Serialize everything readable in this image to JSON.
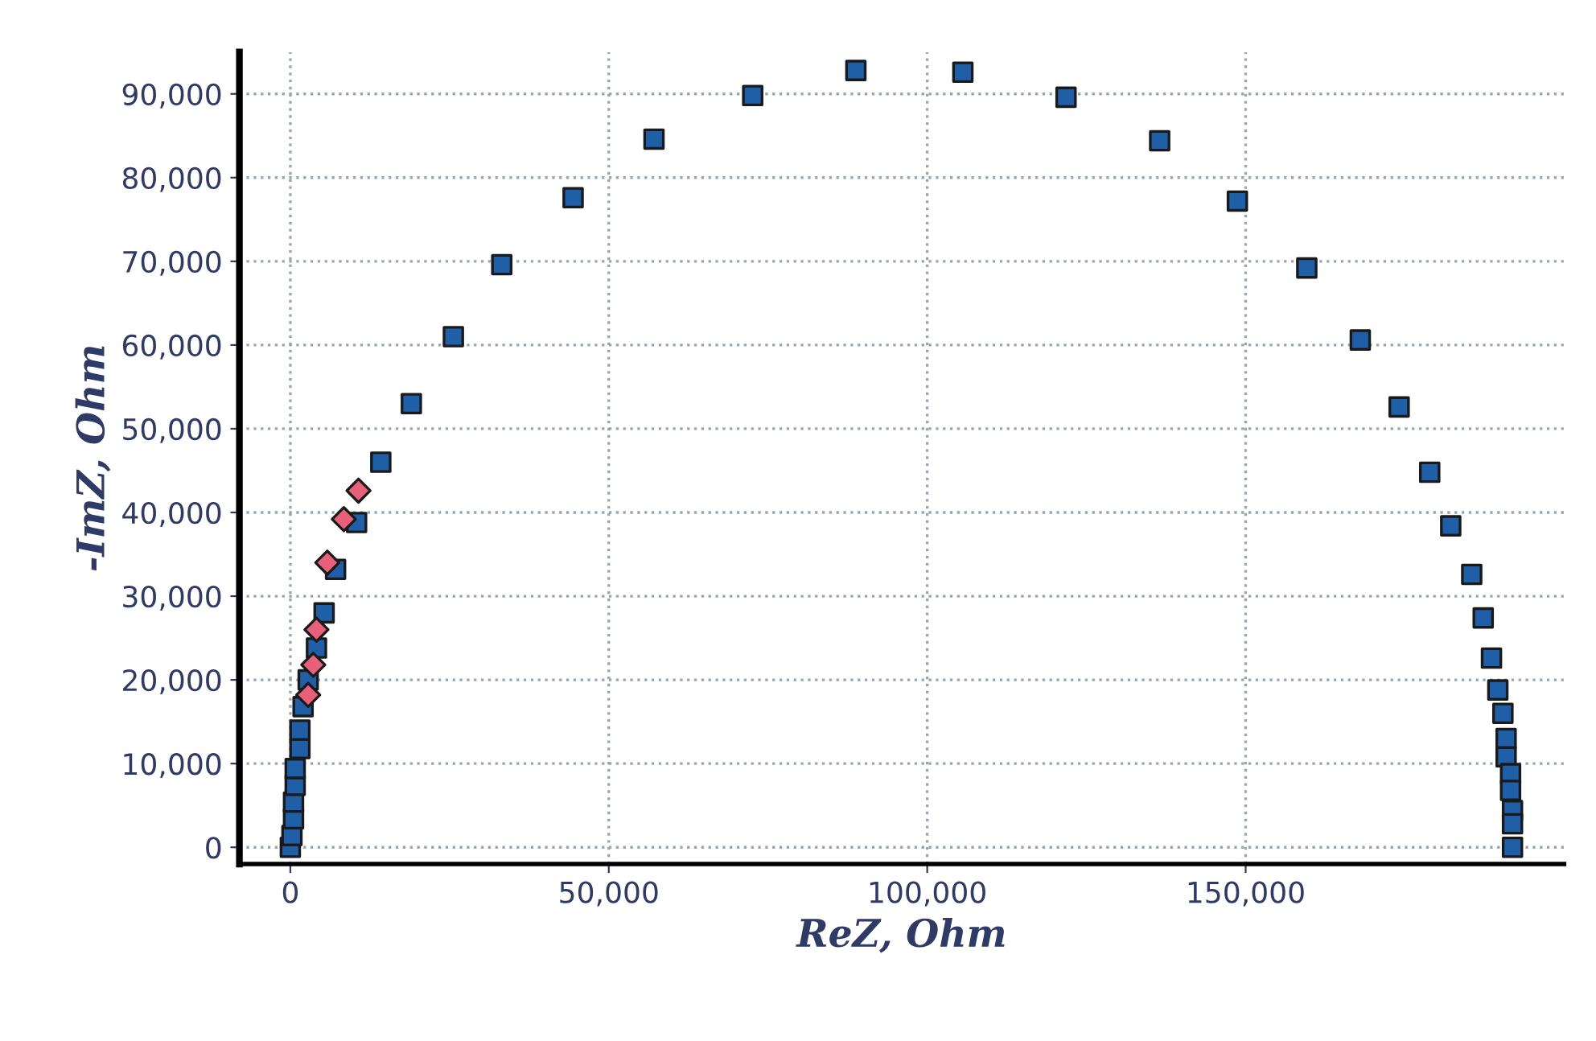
{
  "chart_data": {
    "type": "scatter",
    "xlabel": "ReZ, Ohm",
    "ylabel": "-ImZ, Ohm",
    "xlim": [
      -8000,
      200000
    ],
    "ylim": [
      -2000,
      95000
    ],
    "xticks": [
      {
        "value": 0,
        "label": "0"
      },
      {
        "value": 50000,
        "label": "50,000"
      },
      {
        "value": 100000,
        "label": "100,000"
      },
      {
        "value": 150000,
        "label": "150,000"
      }
    ],
    "yticks": [
      {
        "value": 0,
        "label": "0"
      },
      {
        "value": 10000,
        "label": "10,000"
      },
      {
        "value": 20000,
        "label": "20,000"
      },
      {
        "value": 30000,
        "label": "30,000"
      },
      {
        "value": 40000,
        "label": "40,000"
      },
      {
        "value": 50000,
        "label": "50,000"
      },
      {
        "value": 60000,
        "label": "60,000"
      },
      {
        "value": 70000,
        "label": "70,000"
      },
      {
        "value": 80000,
        "label": "80,000"
      },
      {
        "value": 90000,
        "label": "90,000"
      }
    ],
    "grid": true,
    "series": [
      {
        "color": "#1f5fa8",
        "marker": "square",
        "x": [
          0,
          250,
          500,
          500,
          760,
          760,
          1500,
          1500,
          2000,
          2800,
          4100,
          5300,
          7100,
          10400,
          14200,
          19000,
          25600,
          33200,
          44400,
          57100,
          72600,
          88800,
          105600,
          121800,
          136500,
          148700,
          159600,
          168000,
          174100,
          178900,
          182200,
          185500,
          187300,
          188600,
          189600,
          190400,
          190900,
          190900,
          191600,
          191600,
          191900,
          191900,
          191900
        ],
        "values": [
          0,
          1400,
          3400,
          5400,
          7400,
          9400,
          11800,
          14000,
          16800,
          20000,
          23800,
          28000,
          33200,
          38800,
          46000,
          53000,
          61000,
          69600,
          77600,
          84600,
          89800,
          92800,
          92600,
          89600,
          84400,
          77200,
          69200,
          60600,
          52600,
          44800,
          38400,
          32600,
          27400,
          22600,
          18800,
          16000,
          13000,
          10800,
          8800,
          6800,
          4400,
          2800,
          0
        ]
      },
      {
        "color": "#e8607a",
        "marker": "diamond",
        "x": [
          2800,
          3600,
          4100,
          5800,
          8400,
          10700
        ],
        "values": [
          18200,
          21800,
          26000,
          34000,
          39200,
          42600
        ]
      }
    ]
  }
}
